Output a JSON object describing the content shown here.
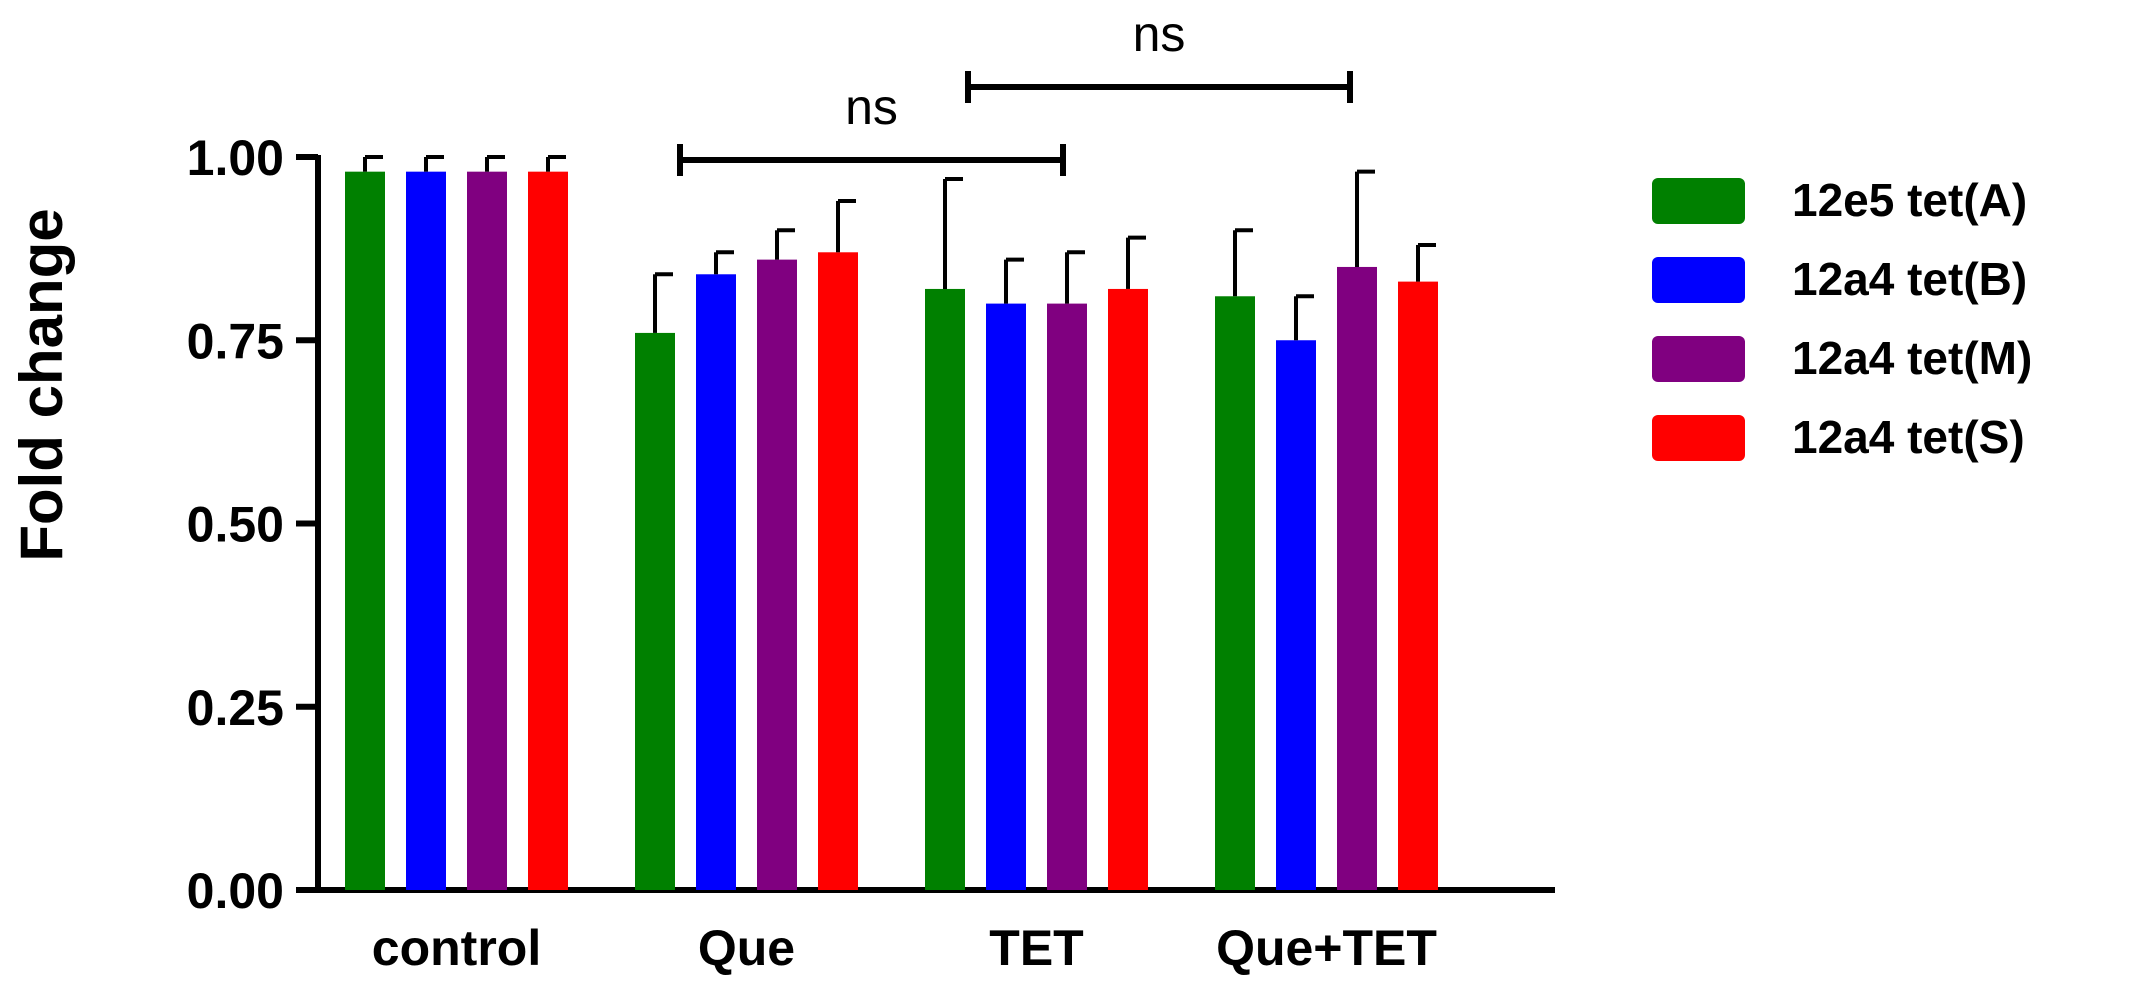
{
  "chart_data": {
    "type": "bar",
    "title": "",
    "xlabel": "",
    "ylabel": "Fold change",
    "ylim": [
      0,
      1.0
    ],
    "yticks": [
      "0.00",
      "0.25",
      "0.50",
      "0.75",
      "1.00"
    ],
    "categories": [
      "control",
      "Que",
      "TET",
      "Que+TET"
    ],
    "legend_position": "right",
    "grid": false,
    "series": [
      {
        "name": "12e5 tet(A)",
        "color": "#008000",
        "values": [
          0.98,
          0.76,
          0.82,
          0.81
        ],
        "errors": [
          0.02,
          0.08,
          0.15,
          0.09
        ]
      },
      {
        "name": "12a4 tet(B)",
        "color": "#0000ff",
        "values": [
          0.98,
          0.84,
          0.8,
          0.75
        ],
        "errors": [
          0.02,
          0.03,
          0.06,
          0.06
        ]
      },
      {
        "name": "12a4 tet(M)",
        "color": "#800080",
        "values": [
          0.98,
          0.86,
          0.8,
          0.85
        ],
        "errors": [
          0.02,
          0.04,
          0.07,
          0.13
        ]
      },
      {
        "name": "12a4 tet(S)",
        "color": "#ff0000",
        "values": [
          0.98,
          0.87,
          0.82,
          0.83
        ],
        "errors": [
          0.02,
          0.07,
          0.07,
          0.05
        ]
      }
    ],
    "annotations": [
      {
        "text": "ns",
        "from_category": "Que",
        "to_category": "TET",
        "y": 1.0
      },
      {
        "text": "ns",
        "from_category": "TET",
        "to_category": "Que+TET",
        "y": 1.09
      }
    ]
  }
}
